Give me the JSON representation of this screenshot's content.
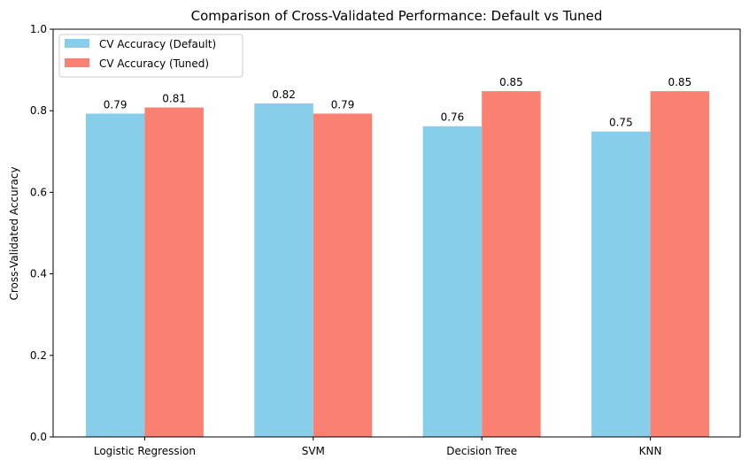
{
  "chart_data": {
    "type": "bar",
    "title": "Comparison of Cross-Validated Performance: Default vs Tuned",
    "xlabel": "",
    "ylabel": "Cross-Validated Accuracy",
    "ylim": [
      0,
      1.0
    ],
    "yticks": [
      "0.0",
      "0.2",
      "0.4",
      "0.6",
      "0.8",
      "1.0"
    ],
    "categories": [
      "Logistic Regression",
      "SVM",
      "Decision Tree",
      "KNN"
    ],
    "series": [
      {
        "name": "CV Accuracy (Default)",
        "color": "#87ceeb",
        "values": [
          0.793,
          0.818,
          0.762,
          0.749
        ],
        "labels": [
          "0.79",
          "0.82",
          "0.76",
          "0.75"
        ]
      },
      {
        "name": "CV Accuracy (Tuned)",
        "color": "#fa8072",
        "values": [
          0.808,
          0.793,
          0.848,
          0.848
        ],
        "labels": [
          "0.81",
          "0.79",
          "0.85",
          "0.85"
        ]
      }
    ],
    "grid": false,
    "legend_position": "top-left"
  }
}
